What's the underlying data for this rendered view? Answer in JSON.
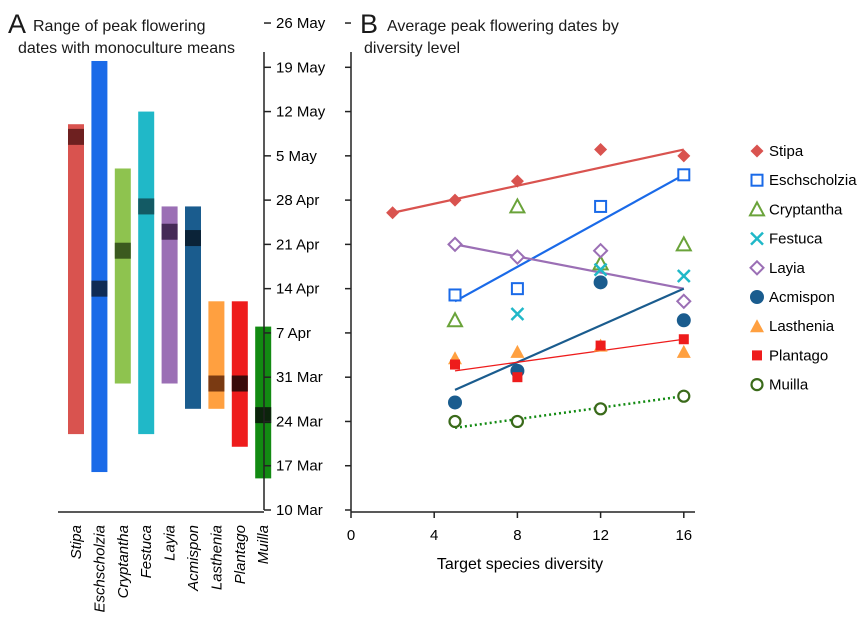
{
  "panel_a": {
    "letter": "A",
    "title_line1": "Range of peak flowering",
    "title_line2": "dates with monoculture means"
  },
  "panel_b": {
    "letter": "B",
    "title_line1": "Average peak flowering dates by",
    "title_line2": "diversity level"
  },
  "chart_data": [
    {
      "type": "bar",
      "subtype": "floating-range",
      "title": "Range of peak flowering dates with monoculture means",
      "y_axis": "right",
      "ylim": [
        "10 Mar",
        "26 May"
      ],
      "y_ticks": [
        "10 Mar",
        "17 Mar",
        "24 Mar",
        "31 Mar",
        "7 Apr",
        "14 Apr",
        "21 Apr",
        "28 Apr",
        "5 May",
        "12 May",
        "19 May",
        "26 May"
      ],
      "x_label_rotation": "vertical",
      "ranges": [
        {
          "species": "Stipa",
          "color": "#d9534f",
          "mean_color": "#6e2020",
          "min": "22 Mar",
          "max": "10 May",
          "mean": "8 May"
        },
        {
          "species": "Eschscholzia",
          "color": "#1a6ae8",
          "mean_color": "#0f2b55",
          "min": "16 Mar",
          "max": "20 May",
          "mean": "14 Apr"
        },
        {
          "species": "Cryptantha",
          "color": "#8ec34f",
          "mean_color": "#3b5a1f",
          "min": "30 Mar",
          "max": "3 May",
          "mean": "20 Apr"
        },
        {
          "species": "Festuca",
          "color": "#20b8c8",
          "mean_color": "#135a64",
          "min": "22 Mar",
          "max": "12 May",
          "mean": "27 Apr"
        },
        {
          "species": "Layia",
          "color": "#9b6fb5",
          "mean_color": "#452a57",
          "min": "30 Mar",
          "max": "27 Apr",
          "mean": "23 Apr"
        },
        {
          "species": "Acmispon",
          "color": "#1a5c8e",
          "mean_color": "#0b2338",
          "min": "26 Mar",
          "max": "27 Apr",
          "mean": "22 Apr"
        },
        {
          "species": "Lasthenia",
          "color": "#ffa040",
          "mean_color": "#7a3a12",
          "min": "26 Mar",
          "max": "12 Apr",
          "mean": "30 Mar"
        },
        {
          "species": "Plantago",
          "color": "#ee1c1c",
          "mean_color": "#3a0a0a",
          "min": "20 Mar",
          "max": "12 Apr",
          "mean": "30 Mar"
        },
        {
          "species": "Muilla",
          "color": "#128a12",
          "mean_color": "#0b240b",
          "min": "15 Mar",
          "max": "8 Apr",
          "mean": "25 Mar"
        }
      ]
    },
    {
      "type": "scatter",
      "title": "Average peak flowering dates by diversity level",
      "xlabel": "Target species diversity",
      "x_ticks": [
        0,
        4,
        8,
        12,
        16
      ],
      "xlim": [
        0,
        16
      ],
      "ylim": [
        "10 Mar",
        "26 May"
      ],
      "y_axis": "shared with panel A",
      "legend_position": "right",
      "series": [
        {
          "name": "Stipa",
          "color": "#d9534f",
          "marker": "diamond-filled",
          "points": [
            [
              2,
              "26 Apr"
            ],
            [
              5,
              "28 Apr"
            ],
            [
              8,
              "1 May"
            ],
            [
              12,
              "6 May"
            ],
            [
              16,
              "5 May"
            ]
          ],
          "trend": [
            [
              2,
              "26 Apr"
            ],
            [
              16,
              "6 May"
            ]
          ],
          "line_style": "solid"
        },
        {
          "name": "Eschscholzia",
          "color": "#1a6ae8",
          "marker": "square-open",
          "points": [
            [
              5,
              "13 Apr"
            ],
            [
              8,
              "14 Apr"
            ],
            [
              12,
              "27 Apr"
            ],
            [
              16,
              "2 May"
            ]
          ],
          "trend": [
            [
              5,
              "12 Apr"
            ],
            [
              16,
              "2 May"
            ]
          ],
          "line_style": "solid"
        },
        {
          "name": "Cryptantha",
          "color": "#6aa33a",
          "marker": "triangle-open",
          "points": [
            [
              5,
              "9 Apr"
            ],
            [
              8,
              "27 Apr"
            ],
            [
              12,
              "18 Apr"
            ],
            [
              16,
              "21 Apr"
            ]
          ],
          "trend": null
        },
        {
          "name": "Festuca",
          "color": "#20b8c8",
          "marker": "x",
          "points": [
            [
              8,
              "10 Apr"
            ],
            [
              12,
              "17 Apr"
            ],
            [
              16,
              "16 Apr"
            ]
          ],
          "trend": null
        },
        {
          "name": "Layia",
          "color": "#9b6fb5",
          "marker": "diamond-open",
          "points": [
            [
              5,
              "21 Apr"
            ],
            [
              8,
              "19 Apr"
            ],
            [
              12,
              "20 Apr"
            ],
            [
              16,
              "12 Apr"
            ]
          ],
          "trend": [
            [
              5,
              "21 Apr"
            ],
            [
              16,
              "14 Apr"
            ]
          ],
          "line_style": "solid"
        },
        {
          "name": "Acmispon",
          "color": "#1a5c8e",
          "marker": "circle-filled",
          "points": [
            [
              5,
              "27 Mar"
            ],
            [
              8,
              "1 Apr"
            ],
            [
              12,
              "15 Apr"
            ],
            [
              16,
              "9 Apr"
            ]
          ],
          "trend": [
            [
              5,
              "29 Mar"
            ],
            [
              16,
              "14 Apr"
            ]
          ],
          "line_style": "solid"
        },
        {
          "name": "Lasthenia",
          "color": "#ffa040",
          "marker": "triangle-filled",
          "points": [
            [
              5,
              "3 Apr"
            ],
            [
              8,
              "4 Apr"
            ],
            [
              12,
              "5 Apr"
            ],
            [
              16,
              "4 Apr"
            ]
          ],
          "trend": null
        },
        {
          "name": "Plantago",
          "color": "#ee1c1c",
          "marker": "square-filled",
          "points": [
            [
              5,
              "2 Apr"
            ],
            [
              8,
              "31 Mar"
            ],
            [
              12,
              "5 Apr"
            ],
            [
              16,
              "6 Apr"
            ]
          ],
          "trend": [
            [
              5,
              "1 Apr"
            ],
            [
              16,
              "6 Apr"
            ]
          ],
          "line_style": "solid-thin"
        },
        {
          "name": "Muilla",
          "color": "#3a6a1a",
          "marker": "circle-open",
          "points": [
            [
              5,
              "24 Mar"
            ],
            [
              8,
              "24 Mar"
            ],
            [
              12,
              "26 Mar"
            ],
            [
              16,
              "28 Mar"
            ]
          ],
          "trend": [
            [
              5,
              "23 Mar"
            ],
            [
              16,
              "28 Mar"
            ]
          ],
          "line_style": "dotted",
          "line_color": "#128a12"
        }
      ]
    }
  ]
}
